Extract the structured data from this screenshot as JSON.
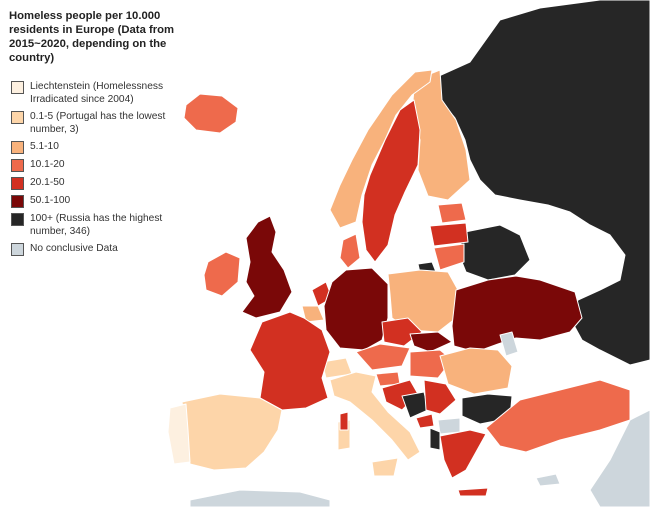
{
  "title": "Homeless people per 10.000 residents in Europe (Data from 2015~2020, depending on the country)",
  "colors": {
    "sea": "#ffffff",
    "border": "#ffffff",
    "irradicated": "#fdf0e0",
    "c_0_5": "#fdd5a9",
    "c_5_10": "#f8b27c",
    "c_10_20": "#ee6a4c",
    "c_20_50": "#d23021",
    "c_50_100": "#7a0808",
    "c_100_plus": "#262626",
    "no_data": "#cdd6dc"
  },
  "legend": [
    {
      "id": "irradicated",
      "label": "Liechtenstein (Homelessness Irradicated since 2004)",
      "color": "#fdf0e0"
    },
    {
      "id": "c_0_5",
      "label": "0.1-5 (Portugal has the lowest number, 3)",
      "color": "#fdd5a9"
    },
    {
      "id": "c_5_10",
      "label": "5.1-10",
      "color": "#f8b27c"
    },
    {
      "id": "c_10_20",
      "label": "10.1-20",
      "color": "#ee6a4c"
    },
    {
      "id": "c_20_50",
      "label": "20.1-50",
      "color": "#d23021"
    },
    {
      "id": "c_50_100",
      "label": "50.1-100",
      "color": "#7a0808"
    },
    {
      "id": "c_100_plus",
      "label": "100+ (Russia has the highest number, 346)",
      "color": "#262626"
    },
    {
      "id": "no_data",
      "label": "No conclusive Data",
      "color": "#cdd6dc"
    }
  ]
}
